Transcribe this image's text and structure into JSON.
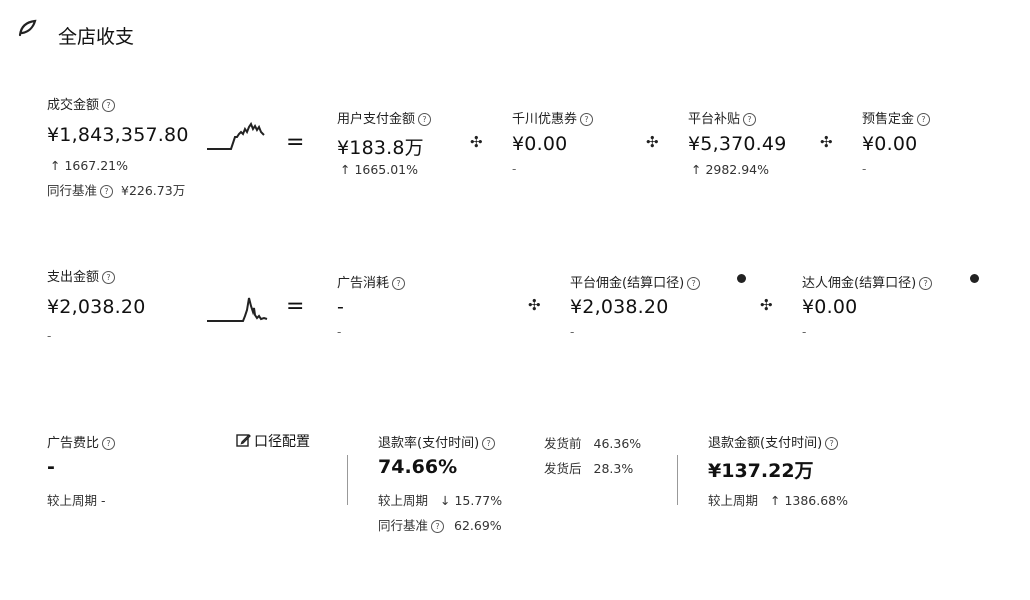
{
  "header": {
    "title": "全店收支"
  },
  "income": {
    "label": "成交金额",
    "value": "¥1,843,357.80",
    "change": "↑ 1667.21%",
    "benchmark_label": "同行基准",
    "benchmark_value": "¥226.73万",
    "equals": "=",
    "items": [
      {
        "label": "用户支付金额",
        "value": "¥183.8万",
        "change": "↑ 1665.01%"
      },
      {
        "label": "千川优惠券",
        "value": "¥0.00",
        "change": "-"
      },
      {
        "label": "平台补贴",
        "value": "¥5,370.49",
        "change": "↑ 2982.94%"
      },
      {
        "label": "预售定金",
        "value": "¥0.00",
        "change": "-"
      }
    ]
  },
  "expense": {
    "label": "支出金额",
    "value": "¥2,038.20",
    "change": "-",
    "equals": "=",
    "items": [
      {
        "label": "广告消耗",
        "value": "-",
        "change": "-"
      },
      {
        "label": "平台佣金(结算口径)",
        "value": "¥2,038.20",
        "change": "-"
      },
      {
        "label": "达人佣金(结算口径)",
        "value": "¥0.00",
        "change": "-"
      }
    ]
  },
  "ad_ratio": {
    "label": "广告费比",
    "value": "-",
    "compare": "较上周期 -",
    "config_label": "口径配置"
  },
  "refund_rate": {
    "label": "退款率(支付时间)",
    "value": "74.66%",
    "compare_label": "较上周期",
    "compare_value": "↓ 15.77%",
    "benchmark_label": "同行基准",
    "benchmark_value": "62.69%",
    "before_label": "发货前",
    "before_value": "46.36%",
    "after_label": "发货后",
    "after_value": "28.3%"
  },
  "refund_amount": {
    "label": "退款金额(支付时间)",
    "value": "¥137.22万",
    "compare_label": "较上周期",
    "compare_value": "↑ 1386.68%"
  },
  "icons": [
    "leaf-icon",
    "help-icon",
    "plus-icon",
    "edit-icon",
    "dot-icon"
  ]
}
